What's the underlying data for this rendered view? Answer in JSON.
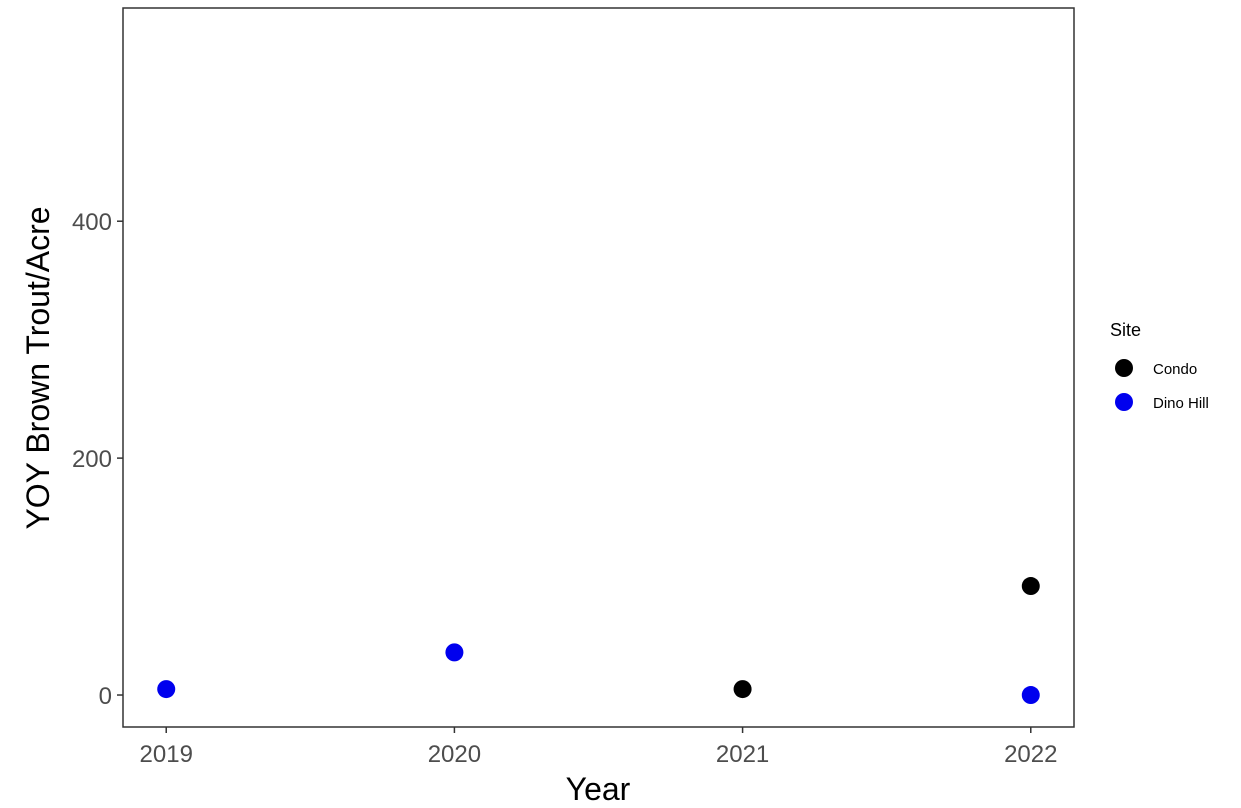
{
  "chart_data": {
    "type": "scatter",
    "title": "",
    "xlabel": "Year",
    "ylabel": "YOY Brown Trout/Acre",
    "x_ticks": [
      "2019",
      "2020",
      "2021",
      "2022"
    ],
    "y_ticks": [
      "0",
      "200",
      "400"
    ],
    "xlim": [
      2018.85,
      2022.15
    ],
    "ylim": [
      -27,
      580
    ],
    "grid": false,
    "legend": {
      "title": "Site",
      "position": "right"
    },
    "series": [
      {
        "name": "Condo",
        "color": "#000000",
        "points": [
          {
            "x": 2021,
            "y": 5
          },
          {
            "x": 2022,
            "y": 92
          }
        ]
      },
      {
        "name": "Dino Hill",
        "color": "#0000ee",
        "points": [
          {
            "x": 2019,
            "y": 5
          },
          {
            "x": 2020,
            "y": 36
          },
          {
            "x": 2022,
            "y": 0
          }
        ]
      }
    ]
  }
}
